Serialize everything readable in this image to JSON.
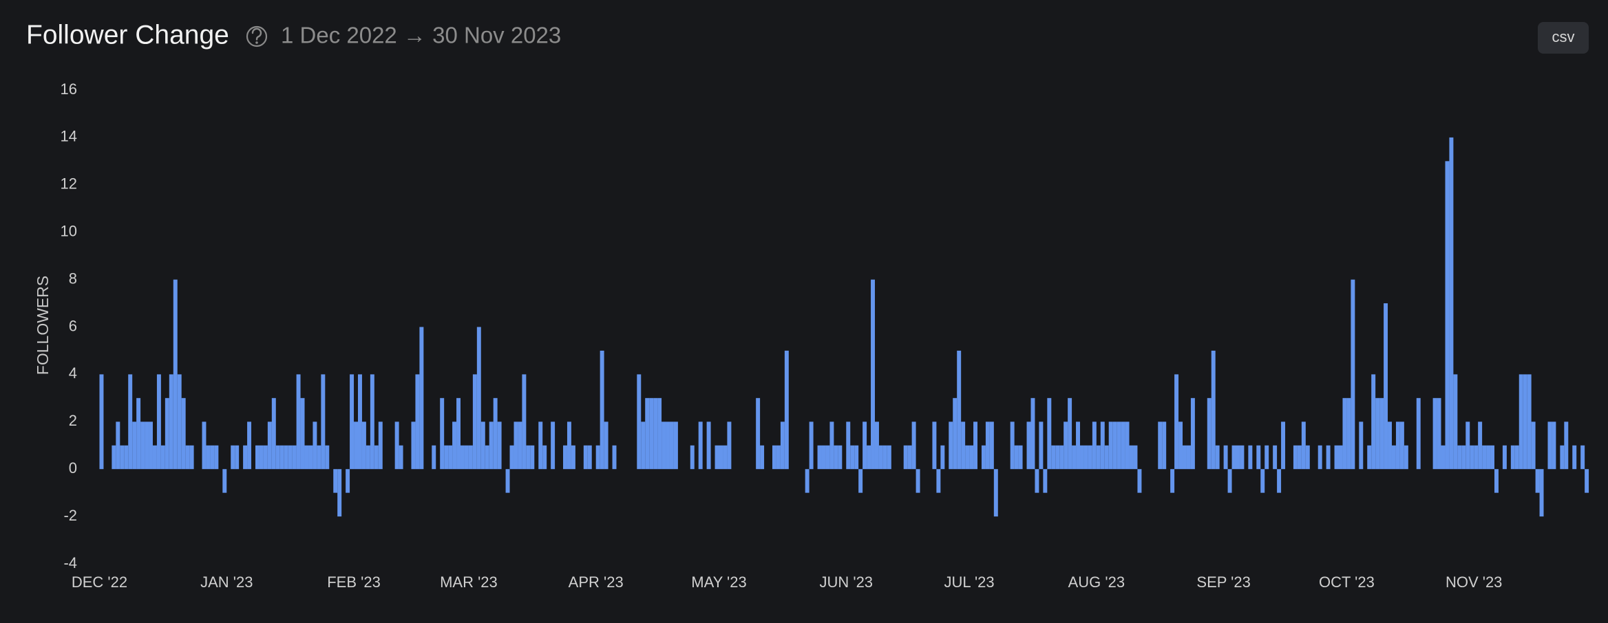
{
  "chart_data": {
    "type": "bar",
    "title": "Follower Change",
    "subtitle": "1 Dec 2022 → 30 Nov 2023",
    "y_label": "FOLLOWERS",
    "color": "#6495ed",
    "values": [
      4,
      0,
      0,
      1,
      2,
      1,
      1,
      4,
      2,
      3,
      2,
      2,
      2,
      1,
      4,
      1,
      3,
      4,
      8,
      4,
      3,
      1,
      1,
      0,
      0,
      2,
      1,
      1,
      1,
      0,
      -1,
      0,
      1,
      1,
      0,
      1,
      2,
      0,
      1,
      1,
      1,
      2,
      3,
      1,
      1,
      1,
      1,
      1,
      4,
      3,
      1,
      1,
      2,
      1,
      4,
      1,
      0,
      -1,
      -2,
      0,
      -1,
      4,
      2,
      4,
      2,
      1,
      4,
      1,
      2,
      0,
      0,
      0,
      2,
      1,
      0,
      0,
      2,
      4,
      6,
      0,
      0,
      1,
      0,
      3,
      1,
      1,
      2,
      3,
      1,
      1,
      1,
      4,
      6,
      2,
      1,
      2,
      3,
      2,
      0,
      -1,
      1,
      2,
      2,
      4,
      1,
      1,
      0,
      2,
      1,
      0,
      2,
      0,
      0,
      1,
      2,
      1,
      0,
      0,
      1,
      1,
      0,
      1,
      5,
      2,
      0,
      1,
      0,
      0,
      0,
      0,
      0,
      4,
      2,
      3,
      3,
      3,
      3,
      2,
      2,
      2,
      2,
      0,
      0,
      0,
      1,
      0,
      2,
      0,
      2,
      0,
      1,
      1,
      1,
      2,
      0,
      0,
      0,
      0,
      0,
      0,
      3,
      1,
      0,
      0,
      1,
      1,
      2,
      5,
      0,
      0,
      0,
      0,
      -1,
      2,
      0,
      1,
      1,
      1,
      2,
      1,
      1,
      0,
      2,
      1,
      1,
      -1,
      2,
      1,
      8,
      2,
      1,
      1,
      1,
      0,
      0,
      0,
      1,
      1,
      2,
      -1,
      0,
      0,
      0,
      2,
      -1,
      1,
      0,
      2,
      3,
      5,
      2,
      1,
      1,
      2,
      0,
      1,
      2,
      2,
      -2,
      0,
      0,
      0,
      2,
      1,
      1,
      0,
      2,
      3,
      -1,
      2,
      -1,
      3,
      1,
      1,
      1,
      2,
      3,
      1,
      2,
      1,
      1,
      1,
      2,
      1,
      2,
      1,
      2,
      2,
      2,
      2,
      2,
      1,
      1,
      -1,
      0,
      0,
      0,
      0,
      2,
      2,
      0,
      -1,
      4,
      2,
      1,
      1,
      3,
      0,
      0,
      0,
      3,
      5,
      1,
      0,
      1,
      -1,
      1,
      1,
      1,
      0,
      1,
      0,
      1,
      -1,
      1,
      0,
      1,
      -1,
      2,
      0,
      0,
      1,
      1,
      2,
      1,
      0,
      0,
      1,
      0,
      1,
      0,
      1,
      1,
      3,
      3,
      8,
      0,
      2,
      0,
      1,
      4,
      3,
      3,
      7,
      2,
      1,
      2,
      2,
      1,
      0,
      0,
      3,
      0,
      0,
      0,
      3,
      3,
      1,
      13,
      14,
      4,
      1,
      1,
      2,
      1,
      1,
      2,
      1,
      1,
      1,
      -1,
      0,
      1,
      0,
      1,
      1,
      4,
      4,
      4,
      2,
      -1,
      -2,
      0,
      2,
      2,
      0,
      1,
      2,
      0,
      1,
      0,
      1,
      -1,
      0,
      0
    ],
    "xlim": [
      0,
      365
    ],
    "xticks": [
      {
        "value": 0,
        "label": "DEC '22"
      },
      {
        "value": 31,
        "label": "JAN '23"
      },
      {
        "value": 62,
        "label": "FEB '23"
      },
      {
        "value": 90,
        "label": "MAR '23"
      },
      {
        "value": 121,
        "label": "APR '23"
      },
      {
        "value": 151,
        "label": "MAY '23"
      },
      {
        "value": 182,
        "label": "JUN '23"
      },
      {
        "value": 212,
        "label": "JUL '23"
      },
      {
        "value": 243,
        "label": "AUG '23"
      },
      {
        "value": 274,
        "label": "SEP '23"
      },
      {
        "value": 304,
        "label": "OCT '23"
      },
      {
        "value": 335,
        "label": "NOV '23"
      }
    ],
    "ylim": [
      -4,
      16
    ],
    "yticks": [
      -4,
      -2,
      0,
      2,
      4,
      6,
      8,
      10,
      12,
      14,
      16
    ]
  },
  "csv_button": "csv"
}
